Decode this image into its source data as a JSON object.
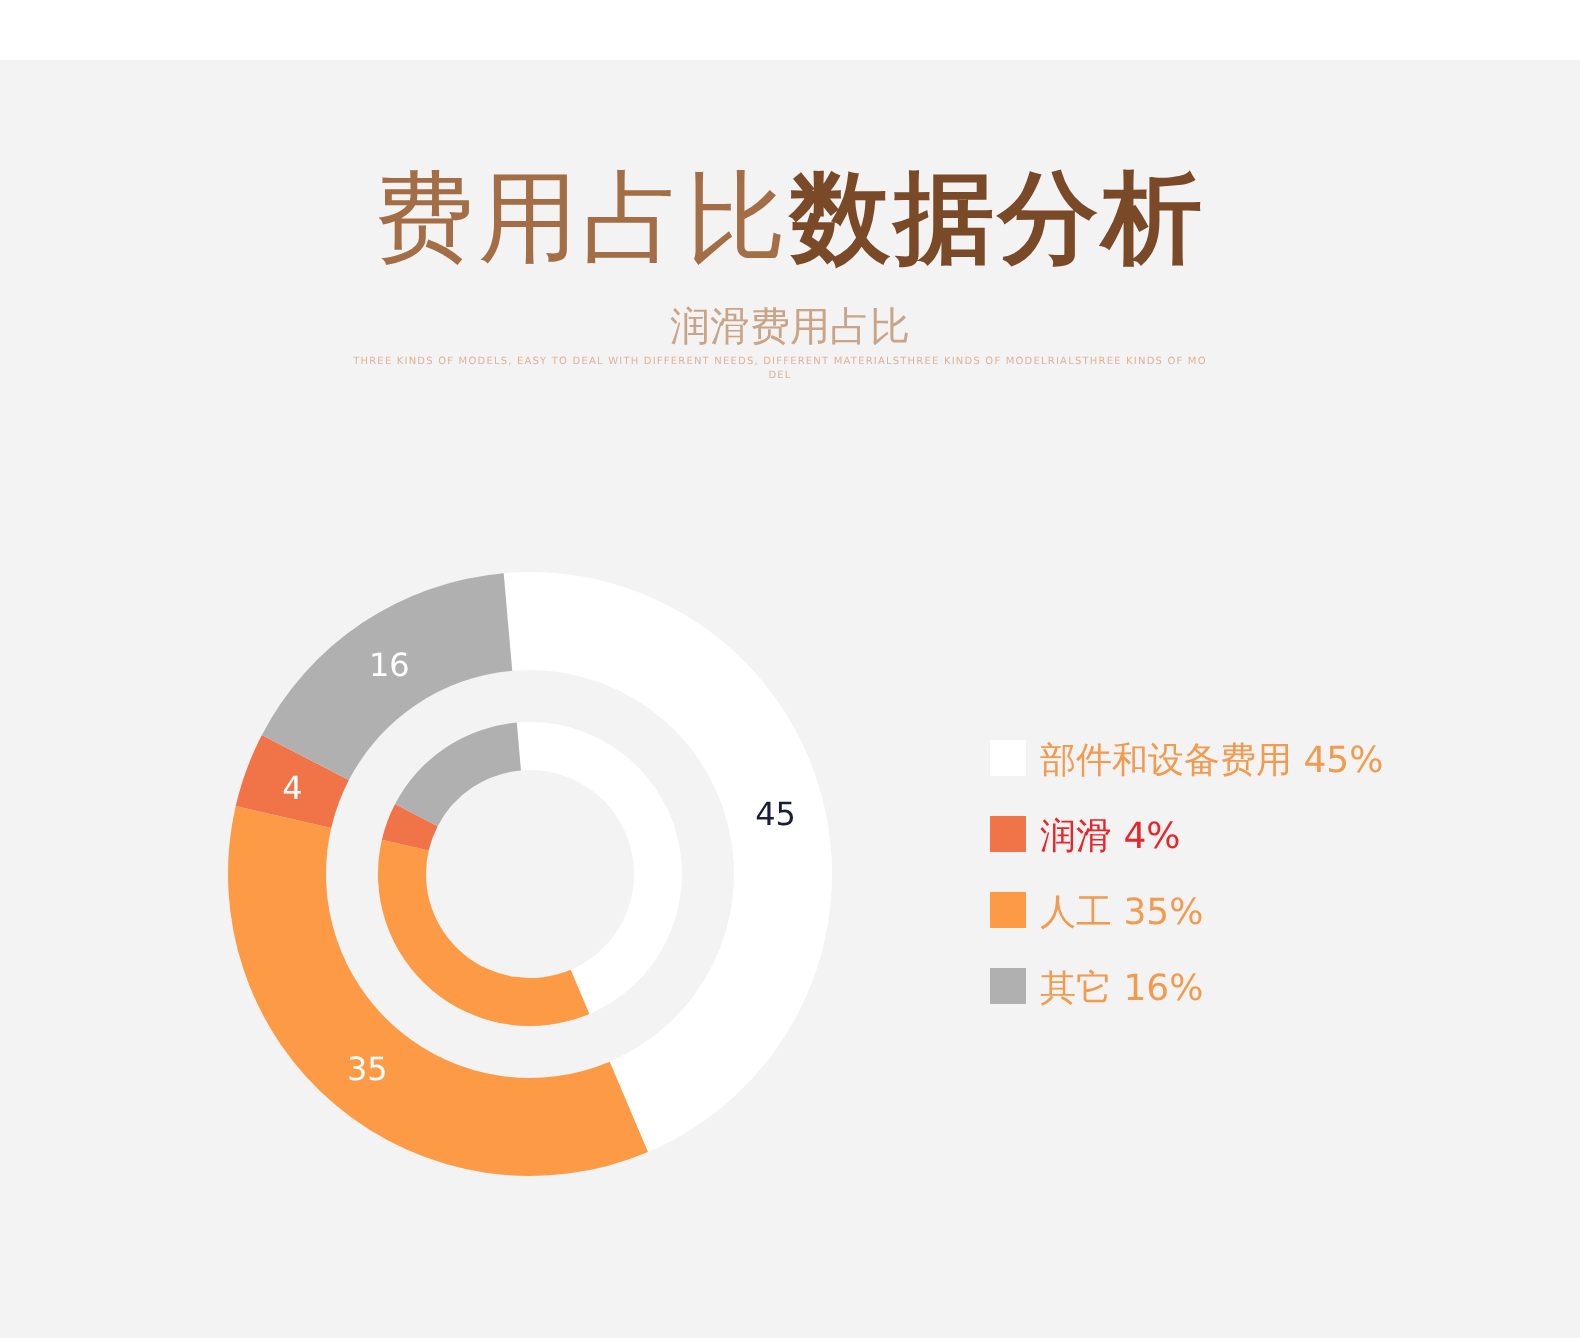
{
  "chart_data": {
    "type": "donut",
    "title": "费用占比数据分析",
    "subtitle": "润滑费用占比",
    "annotations": [
      "THREE KINDS OF MODELS, EASY TO DEAL WITH DIFFERENT NEEDS, DIFFERENT MATERIALSTHREE KINDS OF MODELRIALSTHREE KINDS OF MODEL"
    ],
    "categories": [
      "部件和设备费用 45%",
      "润滑 4%",
      "人工 35%",
      "其它 16%"
    ],
    "colors": [
      "#ffffff",
      "#f07448",
      "#fd9a45",
      "#b0b0b0"
    ],
    "series": [
      {
        "values": [
          45,
          4,
          35,
          16
        ],
        "value_labels": [
          "45",
          "4",
          "35",
          "16"
        ]
      },
      {
        "values": [
          45,
          4,
          35,
          16
        ]
      }
    ],
    "legend": "right"
  }
}
